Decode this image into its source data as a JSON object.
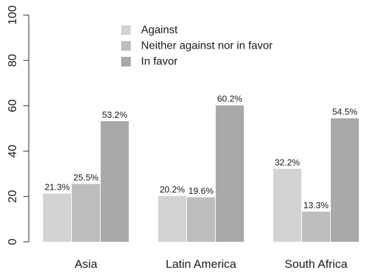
{
  "chart_data": {
    "type": "bar",
    "categories": [
      "Asia",
      "Latin America",
      "South Africa"
    ],
    "series": [
      {
        "name": "Against",
        "values": [
          21.3,
          20.2,
          32.2
        ],
        "labels": [
          "21.3%",
          "20.2%",
          "32.2%"
        ],
        "color": "#d3d3d3"
      },
      {
        "name": "Neither against nor in favor",
        "values": [
          25.5,
          19.6,
          13.3
        ],
        "labels": [
          "25.5%",
          "19.6%",
          "13.3%"
        ],
        "color": "#bdbdbd"
      },
      {
        "name": "In favor",
        "values": [
          53.2,
          60.2,
          54.5
        ],
        "labels": [
          "53.2%",
          "60.2%",
          "54.5%"
        ],
        "color": "#a9a9a9"
      }
    ],
    "yticks": [
      "0",
      "20",
      "40",
      "60",
      "80",
      "100"
    ],
    "ylim": [
      0,
      100
    ],
    "legend_position": "top-center",
    "grid": false
  }
}
